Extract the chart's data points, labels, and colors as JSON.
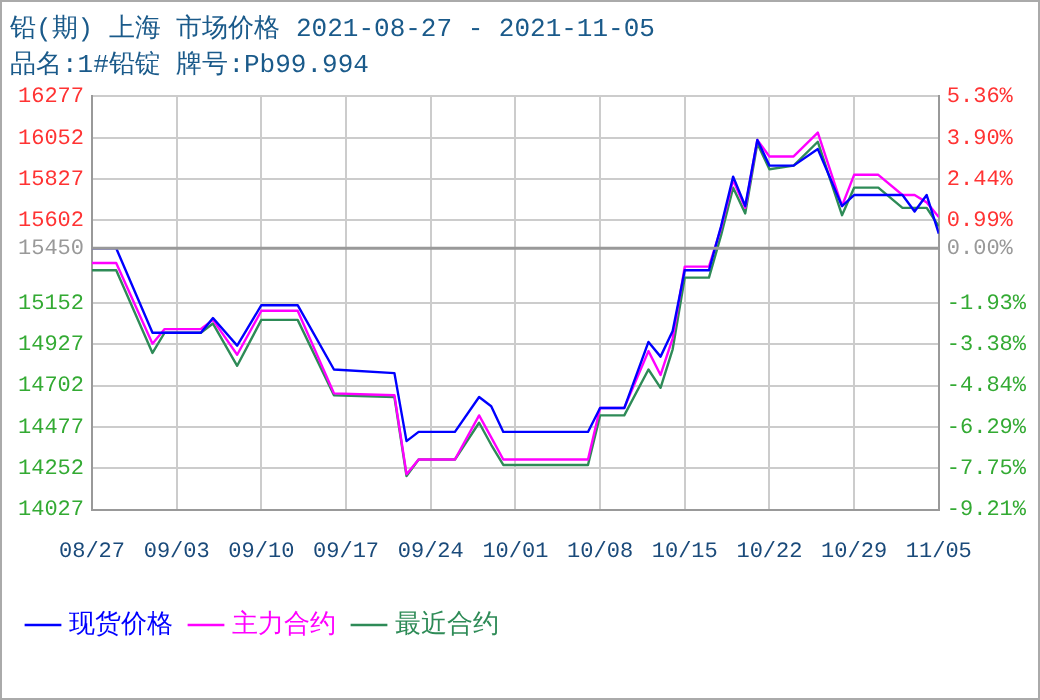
{
  "chart_data": {
    "type": "line",
    "title": "铅(期) 上海 市场价格 2021-08-27 - 2021-11-05",
    "subtitle": "品名:1#铅锭 牌号:Pb99.994",
    "x": [
      "2021-08-27",
      "2021-08-29",
      "2021-09-01",
      "2021-09-02",
      "2021-09-05",
      "2021-09-06",
      "2021-09-08",
      "2021-09-10",
      "2021-09-13",
      "2021-09-16",
      "2021-09-21",
      "2021-09-22",
      "2021-09-23",
      "2021-09-26",
      "2021-09-28",
      "2021-09-29",
      "2021-09-30",
      "2021-10-07",
      "2021-10-08",
      "2021-10-10",
      "2021-10-12",
      "2021-10-13",
      "2021-10-14",
      "2021-10-15",
      "2021-10-17",
      "2021-10-18",
      "2021-10-19",
      "2021-10-20",
      "2021-10-21",
      "2021-10-22",
      "2021-10-24",
      "2021-10-26",
      "2021-10-28",
      "2021-10-29",
      "2021-10-31",
      "2021-11-02",
      "2021-11-03",
      "2021-11-04",
      "2021-11-05"
    ],
    "series": [
      {
        "name": "现货价格",
        "color": "#0000ff",
        "values": [
          15450,
          15450,
          14990,
          14990,
          14990,
          15070,
          14920,
          15140,
          15140,
          14790,
          14770,
          14400,
          14450,
          14450,
          14640,
          14590,
          14450,
          14450,
          14580,
          14580,
          14940,
          14860,
          15000,
          15330,
          15330,
          15570,
          15840,
          15680,
          16040,
          15900,
          15900,
          15990,
          15680,
          15740,
          15740,
          15740,
          15650,
          15740,
          15530
        ]
      },
      {
        "name": "主力合约",
        "color": "#ff00ff",
        "values": [
          15370,
          15370,
          14930,
          15010,
          15010,
          15060,
          14870,
          15110,
          15110,
          14660,
          14650,
          14220,
          14300,
          14300,
          14540,
          14420,
          14300,
          14300,
          14580,
          14580,
          14890,
          14760,
          14960,
          15350,
          15350,
          15560,
          15820,
          15670,
          16040,
          15950,
          15950,
          16080,
          15680,
          15850,
          15850,
          15740,
          15740,
          15700,
          15620
        ]
      },
      {
        "name": "最近合约",
        "color": "#2e8b57",
        "values": [
          15330,
          15330,
          14880,
          14990,
          14990,
          15040,
          14810,
          15060,
          15060,
          14650,
          14640,
          14210,
          14300,
          14300,
          14500,
          14380,
          14270,
          14270,
          14540,
          14540,
          14790,
          14690,
          14900,
          15290,
          15290,
          15520,
          15780,
          15640,
          16020,
          15880,
          15900,
          16030,
          15630,
          15780,
          15780,
          15670,
          15670,
          15670,
          15570
        ]
      }
    ],
    "xlim": [
      "2021-08-27",
      "2021-11-05"
    ],
    "xticks": [
      {
        "value": "2021-08-27",
        "label": "08/27"
      },
      {
        "value": "2021-09-03",
        "label": "09/03"
      },
      {
        "value": "2021-09-10",
        "label": "09/10"
      },
      {
        "value": "2021-09-17",
        "label": "09/17"
      },
      {
        "value": "2021-09-24",
        "label": "09/24"
      },
      {
        "value": "2021-10-01",
        "label": "10/01"
      },
      {
        "value": "2021-10-08",
        "label": "10/08"
      },
      {
        "value": "2021-10-15",
        "label": "10/15"
      },
      {
        "value": "2021-10-22",
        "label": "10/22"
      },
      {
        "value": "2021-10-29",
        "label": "10/29"
      },
      {
        "value": "2021-11-05",
        "label": "11/05"
      }
    ],
    "ylim": [
      14027,
      16277
    ],
    "yticks": [
      14027,
      14252,
      14477,
      14702,
      14927,
      15152,
      15450,
      15602,
      15827,
      16052,
      16277
    ],
    "y2lim": [
      -9.21,
      5.36
    ],
    "y2ticks": [
      {
        "value": -9.21,
        "label": "-9.21%"
      },
      {
        "value": -7.75,
        "label": "-7.75%"
      },
      {
        "value": -6.29,
        "label": "-6.29%"
      },
      {
        "value": -4.84,
        "label": "-4.84%"
      },
      {
        "value": -3.38,
        "label": "-3.38%"
      },
      {
        "value": -1.93,
        "label": "-1.93%"
      },
      {
        "value": 0,
        "label": "0.00%"
      },
      {
        "value": 0.99,
        "label": "0.99%"
      },
      {
        "value": 2.44,
        "label": "2.44%"
      },
      {
        "value": 3.9,
        "label": "3.90%"
      },
      {
        "value": 5.36,
        "label": "5.36%"
      }
    ],
    "ref_lines": [
      {
        "axis": "y",
        "value": 15450,
        "color": "#999999",
        "line_style": "solid"
      }
    ],
    "grid": true,
    "legend": "bottom left",
    "marker": "none",
    "line_style": "solid"
  }
}
